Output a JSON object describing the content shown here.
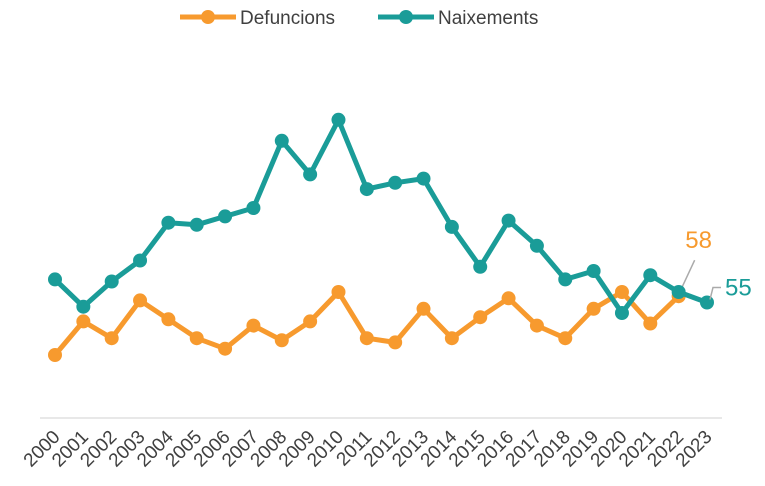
{
  "chart_data": {
    "type": "line",
    "categories": [
      "2000",
      "2001",
      "2002",
      "2003",
      "2004",
      "2005",
      "2006",
      "2007",
      "2008",
      "2009",
      "2010",
      "2011",
      "2012",
      "2013",
      "2014",
      "2015",
      "2016",
      "2017",
      "2018",
      "2019",
      "2020",
      "2021",
      "2022",
      "2023"
    ],
    "series": [
      {
        "name": "Defuncions",
        "color": "#f79a2e",
        "values": [
          30,
          46,
          38,
          56,
          47,
          38,
          33,
          44,
          37,
          46,
          60,
          38,
          36,
          52,
          38,
          48,
          57,
          44,
          38,
          52,
          60,
          45,
          58,
          null
        ]
      },
      {
        "name": "Naixements",
        "color": "#1a9c98",
        "values": [
          66,
          53,
          65,
          75,
          93,
          92,
          96,
          100,
          132,
          116,
          142,
          109,
          112,
          114,
          91,
          72,
          94,
          82,
          66,
          70,
          50,
          68,
          60,
          55
        ]
      }
    ],
    "ylim": [
      0,
      160
    ]
  }
}
